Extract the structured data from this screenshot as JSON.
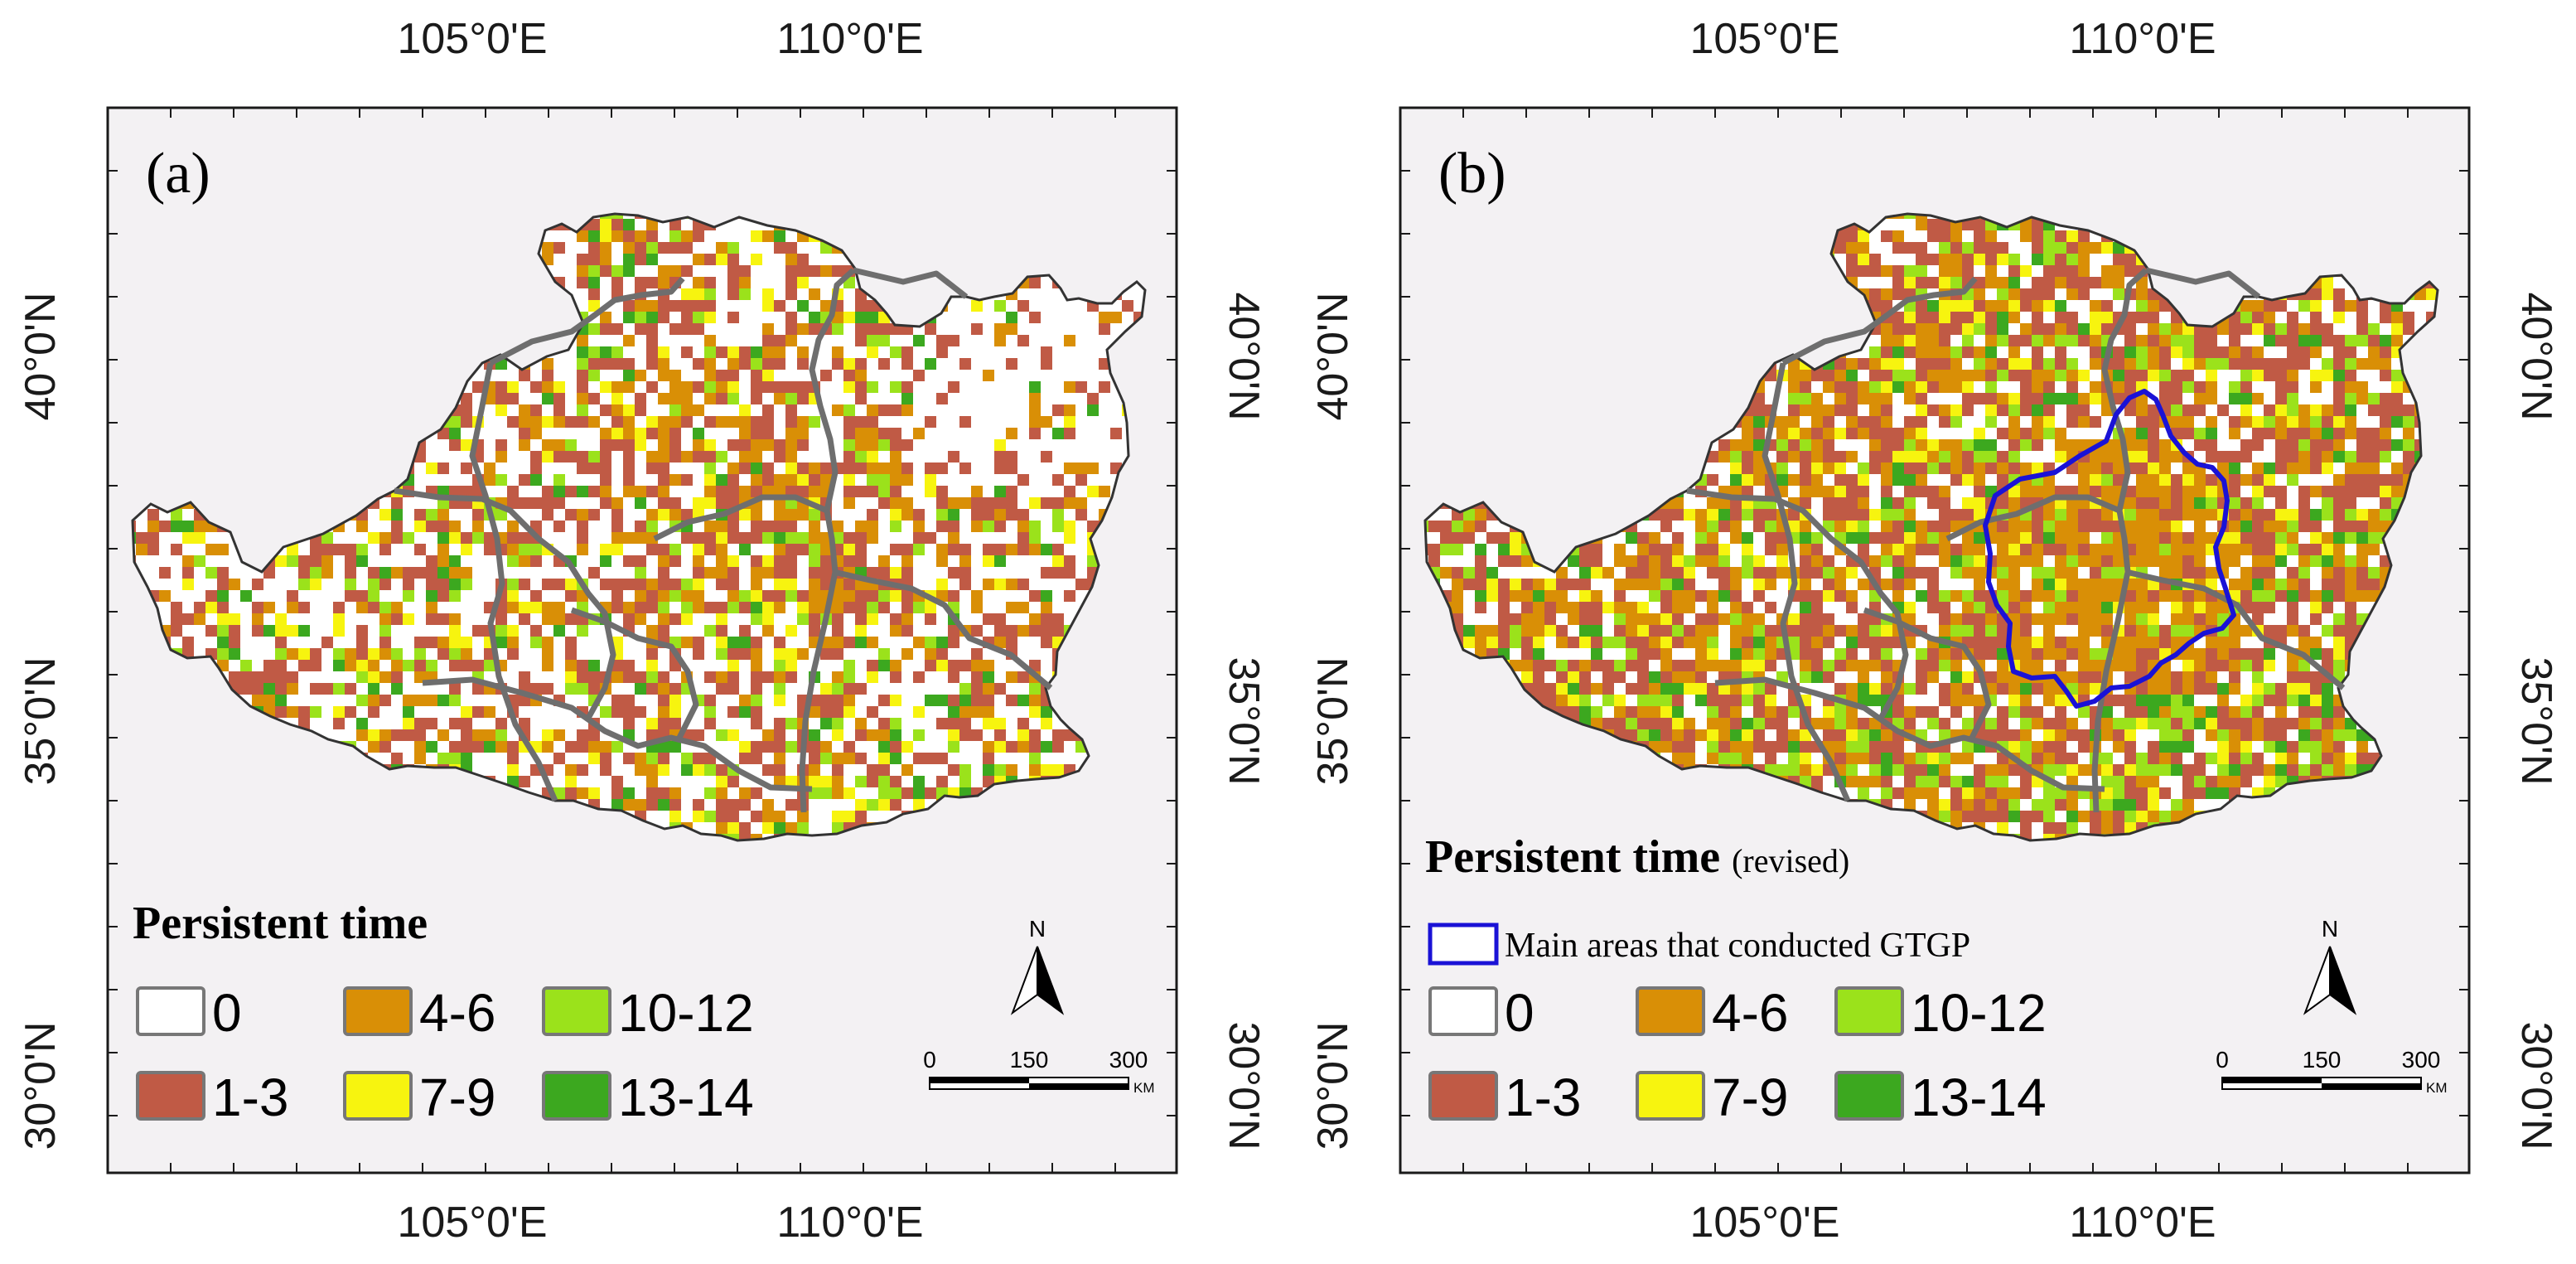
{
  "colors": {
    "page_bg": "#ffffff",
    "map_bg": "#f3f1f3",
    "region_fill": "#ffffff",
    "boundary": "#6e6e6e",
    "gtgp_outline": "#1a12d6",
    "class_0": "#ffffff",
    "class_1_3": "#c05a45",
    "class_4_6": "#d98f06",
    "class_7_9": "#f7f40f",
    "class_10_12": "#9be21b",
    "class_13_14": "#3ca81f"
  },
  "axes": {
    "top_ticks": [
      "105°0'E",
      "110°0'E"
    ],
    "bottom_ticks": [
      "105°0'E",
      "110°0'E"
    ],
    "left_ticks": [
      "40°0'N",
      "35°0'N",
      "30°0'N"
    ],
    "right_ticks": [
      "40°0'N",
      "35°0'N",
      "30°0'N"
    ]
  },
  "panels": [
    {
      "id": "a",
      "label": "(a)",
      "legend": {
        "title": "Persistent time",
        "title_suffix": "",
        "gtgp_label": "",
        "classes": [
          {
            "label": "0",
            "color_key": "class_0"
          },
          {
            "label": "1-3",
            "color_key": "class_1_3"
          },
          {
            "label": "4-6",
            "color_key": "class_4_6"
          },
          {
            "label": "7-9",
            "color_key": "class_7_9"
          },
          {
            "label": "10-12",
            "color_key": "class_10_12"
          },
          {
            "label": "13-14",
            "color_key": "class_13_14"
          }
        ]
      },
      "north_label": "N",
      "scale": {
        "ticks": [
          "0",
          "150",
          "300"
        ],
        "unit": "KM"
      },
      "class_weights": [
        0.46,
        0.27,
        0.13,
        0.05,
        0.06,
        0.03
      ],
      "has_gtgp": false
    },
    {
      "id": "b",
      "label": "(b)",
      "legend": {
        "title": "Persistent time",
        "title_suffix": "(revised)",
        "gtgp_label": "Main areas that conducted GTGP",
        "classes": [
          {
            "label": "0",
            "color_key": "class_0"
          },
          {
            "label": "1-3",
            "color_key": "class_1_3"
          },
          {
            "label": "4-6",
            "color_key": "class_4_6"
          },
          {
            "label": "7-9",
            "color_key": "class_7_9"
          },
          {
            "label": "10-12",
            "color_key": "class_10_12"
          },
          {
            "label": "13-14",
            "color_key": "class_13_14"
          }
        ]
      },
      "north_label": "N",
      "scale": {
        "ticks": [
          "0",
          "150",
          "300"
        ],
        "unit": "KM"
      },
      "class_weights": [
        0.22,
        0.35,
        0.22,
        0.07,
        0.09,
        0.05
      ],
      "has_gtgp": true
    }
  ]
}
